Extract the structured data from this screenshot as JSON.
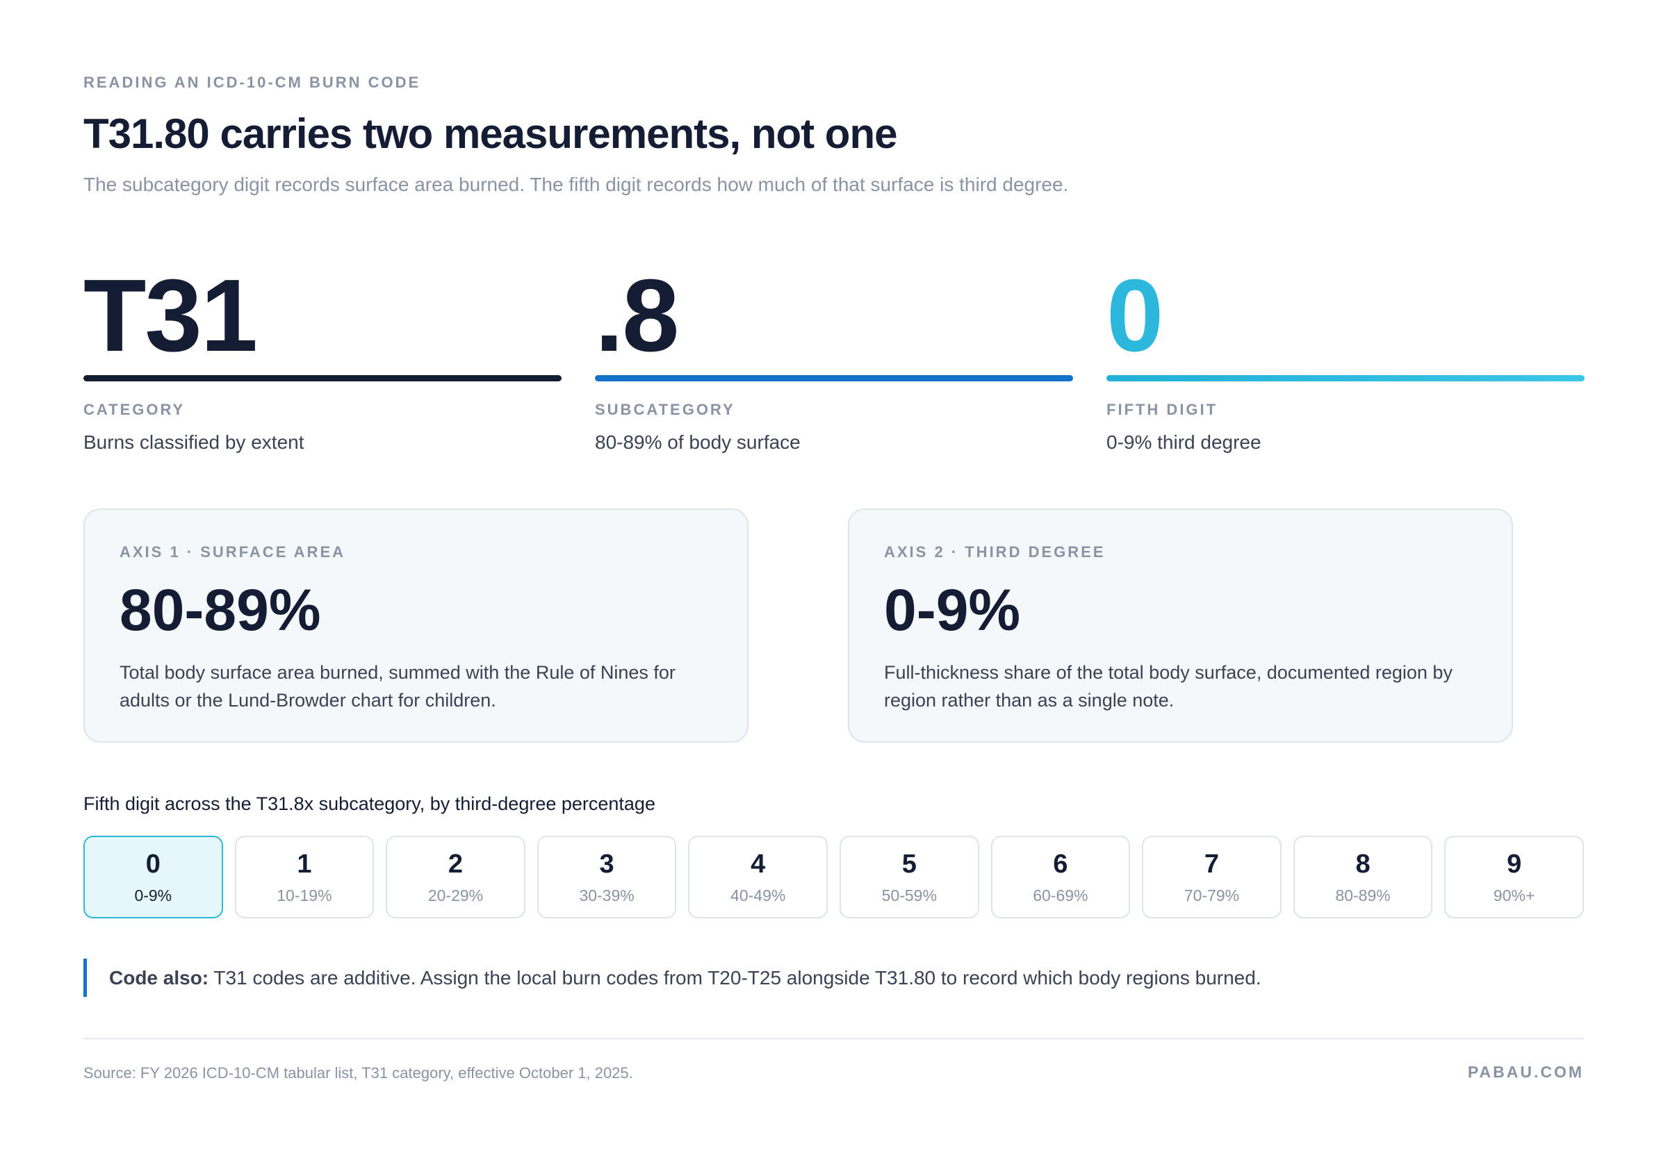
{
  "header": {
    "eyebrow": "READING AN ICD-10-CM BURN CODE",
    "title": "T31.80 carries two measurements, not one",
    "subtitle": "The subcategory digit records surface area burned. The fifth digit records how much of that surface is third degree."
  },
  "code": {
    "parts": [
      {
        "text": "T31",
        "label": "CATEGORY",
        "description": "Burns classified by extent"
      },
      {
        "text": ".8",
        "label": "SUBCATEGORY",
        "description": "80-89% of body surface"
      },
      {
        "text": "0",
        "label": "FIFTH DIGIT",
        "description": "0-9% third degree"
      }
    ]
  },
  "axes": [
    {
      "label": "AXIS 1 · SURFACE AREA",
      "value": "80-89%",
      "description": "Total body surface area burned, summed with the Rule of Nines for adults or the Lund-Browder chart for children."
    },
    {
      "label": "AXIS 2 · THIRD DEGREE",
      "value": "0-9%",
      "description": "Full-thickness share of the total body surface, documented region by region rather than as a single note."
    }
  ],
  "digits": {
    "heading": "Fifth digit across the T31.8x subcategory, by third-degree percentage",
    "items": [
      {
        "digit": "0",
        "range": "0-9%"
      },
      {
        "digit": "1",
        "range": "10-19%"
      },
      {
        "digit": "2",
        "range": "20-29%"
      },
      {
        "digit": "3",
        "range": "30-39%"
      },
      {
        "digit": "4",
        "range": "40-49%"
      },
      {
        "digit": "5",
        "range": "50-59%"
      },
      {
        "digit": "6",
        "range": "60-69%"
      },
      {
        "digit": "7",
        "range": "70-79%"
      },
      {
        "digit": "8",
        "range": "80-89%"
      },
      {
        "digit": "9",
        "range": "90%+"
      }
    ]
  },
  "note": {
    "lead": "Code also:",
    "text": "T31 codes are additive. Assign the local burn codes from T20-T25 alongside T31.80 to record which body regions burned."
  },
  "footer": {
    "source": "Source: FY 2026 ICD-10-CM tabular list, T31 category, effective October 1, 2025.",
    "brand": "PABAU.COM"
  }
}
